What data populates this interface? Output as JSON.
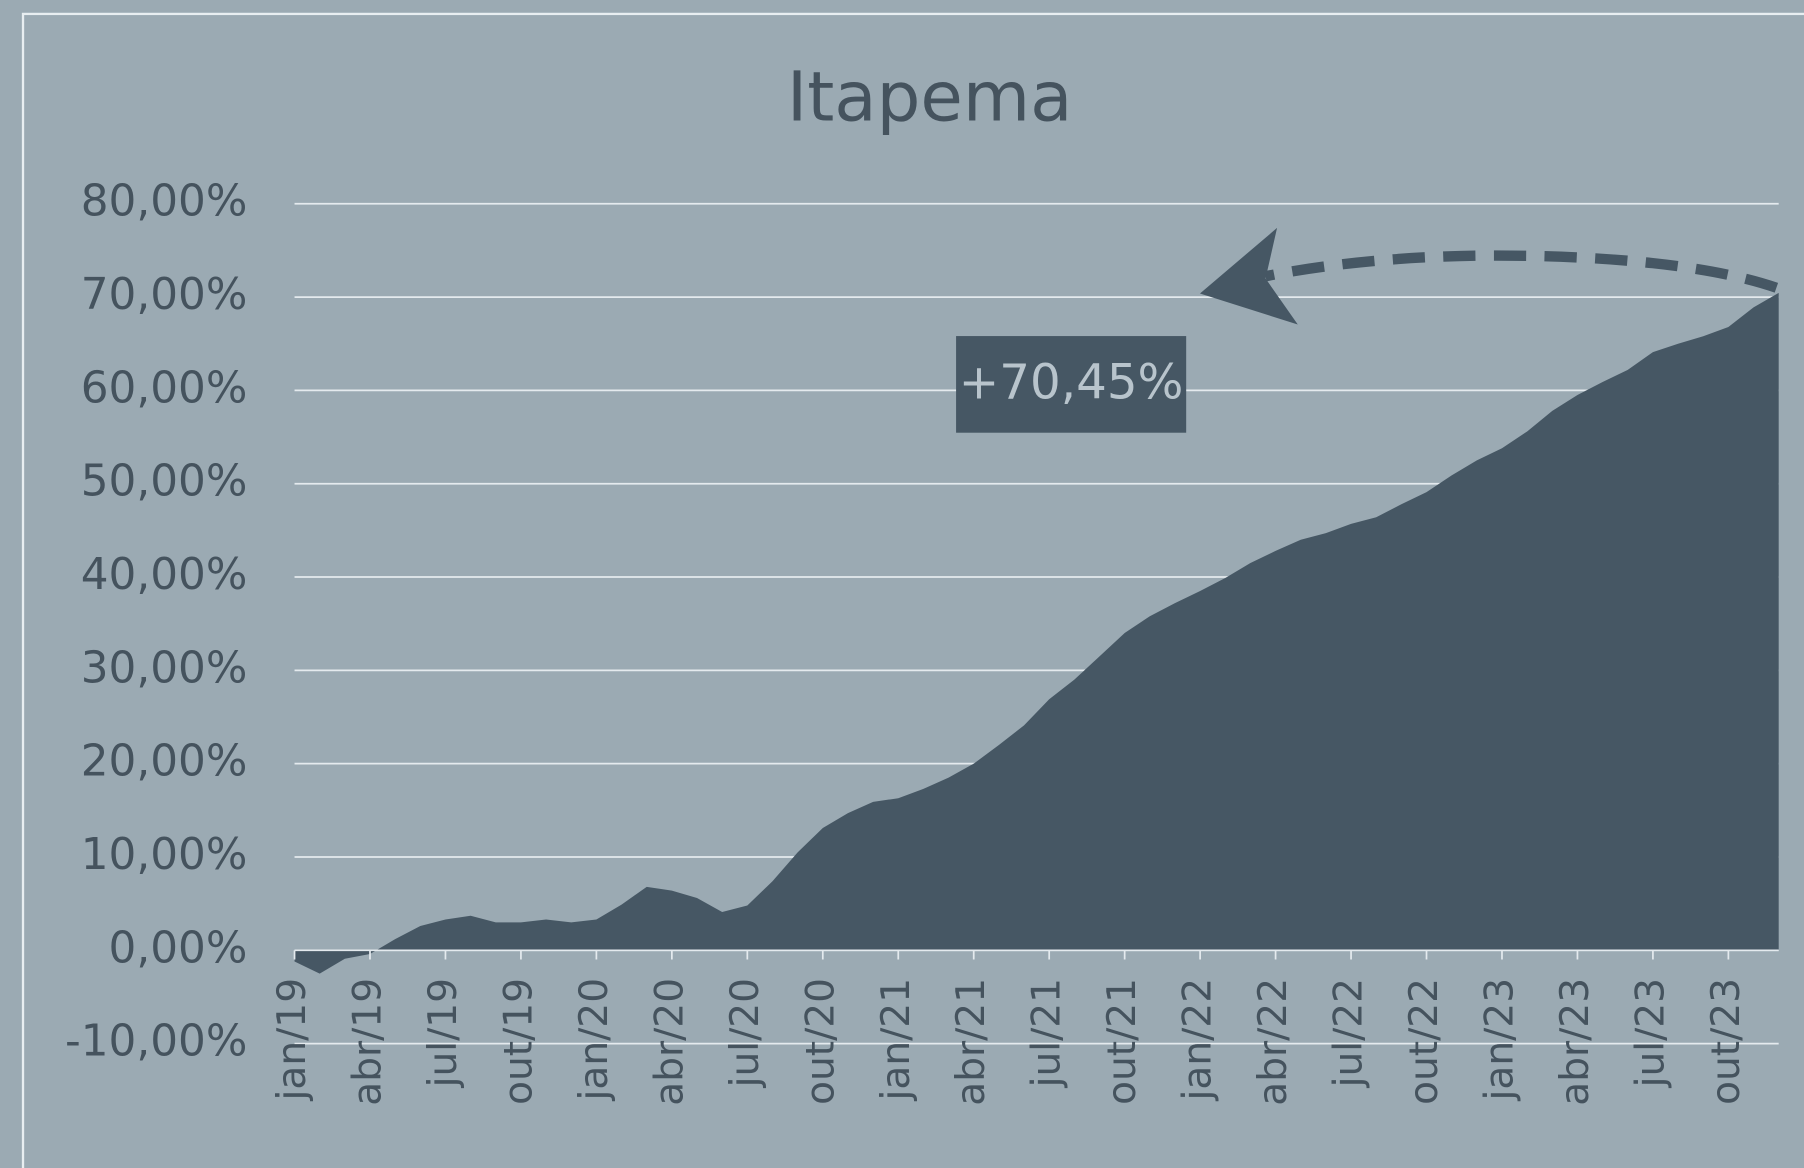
{
  "chart_data": {
    "type": "area",
    "title": "Itapema",
    "categories": [
      "jan/19",
      null,
      null,
      "abr/19",
      null,
      null,
      "jul/19",
      null,
      null,
      "out/19",
      null,
      null,
      "jan/20",
      null,
      null,
      "abr/20",
      null,
      null,
      "jul/20",
      null,
      null,
      "out/20",
      null,
      null,
      "jan/21",
      null,
      null,
      "abr/21",
      null,
      null,
      "jul/21",
      null,
      null,
      "out/21",
      null,
      null,
      "jan/22",
      null,
      null,
      "abr/22",
      null,
      null,
      "jul/22",
      null,
      null,
      "out/22",
      null,
      null,
      "jan/23",
      null,
      null,
      "abr/23",
      null,
      null,
      "jul/23",
      null,
      null,
      "out/23",
      null,
      null
    ],
    "values": [
      -1.2,
      -2.5,
      -0.9,
      -0.4,
      1.2,
      2.6,
      3.3,
      3.7,
      3.0,
      3.0,
      3.3,
      3.0,
      3.3,
      4.9,
      6.8,
      6.4,
      5.6,
      4.1,
      4.8,
      7.4,
      10.5,
      13.1,
      14.7,
      15.9,
      16.3,
      17.3,
      18.5,
      20.0,
      22.0,
      24.1,
      26.9,
      29.0,
      31.5,
      34.0,
      35.8,
      37.2,
      38.5,
      39.9,
      41.5,
      42.8,
      44.0,
      44.7,
      45.7,
      46.4,
      47.8,
      49.1,
      50.9,
      52.5,
      53.8,
      55.6,
      57.8,
      59.5,
      60.9,
      62.2,
      64.1,
      65.0,
      65.8,
      66.8,
      68.9,
      70.45
    ],
    "color": "#465764",
    "ylim": [
      -10,
      80
    ],
    "yticks": [
      {
        "value": -10,
        "label": "-10,00%"
      },
      {
        "value": 0,
        "label": "0,00%"
      },
      {
        "value": 10,
        "label": "10,00%"
      },
      {
        "value": 20,
        "label": "20,00%"
      },
      {
        "value": 30,
        "label": "30,00%"
      },
      {
        "value": 40,
        "label": "40,00%"
      },
      {
        "value": 50,
        "label": "50,00%"
      },
      {
        "value": 60,
        "label": "60,00%"
      },
      {
        "value": 70,
        "label": "70,00%"
      },
      {
        "value": 80,
        "label": "80,00%"
      }
    ],
    "grid": true,
    "annotation": "+70,45%"
  }
}
